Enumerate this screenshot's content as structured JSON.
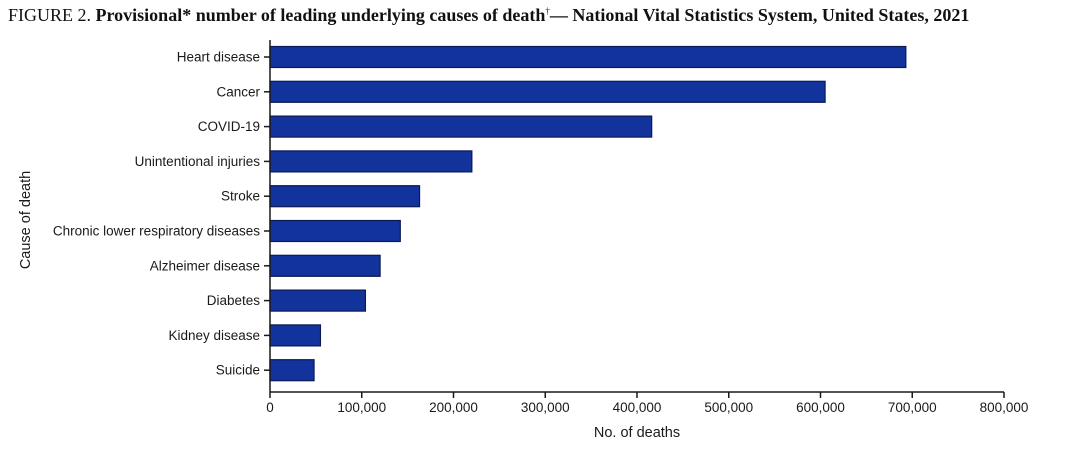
{
  "figure": {
    "label": "FIGURE 2.",
    "title_main": "Provisional* number of leading underlying causes of death",
    "dagger": "†",
    "title_rest": "— National Vital Statistics System, United States, 2021"
  },
  "colors": {
    "bar_fill": "#13339c",
    "bar_stroke": "#0a1a55",
    "axis": "#1a1a1a"
  },
  "chart_data": {
    "type": "bar",
    "orientation": "horizontal",
    "title": "Provisional* number of leading underlying causes of death†— National Vital Statistics System, United States, 2021",
    "categories": [
      "Heart disease",
      "Cancer",
      "COVID-19",
      "Unintentional injuries",
      "Stroke",
      "Chronic lower respiratory diseases",
      "Alzheimer disease",
      "Diabetes",
      "Kidney disease",
      "Suicide"
    ],
    "values": [
      693000,
      605000,
      416000,
      220000,
      163000,
      142000,
      120000,
      104000,
      55000,
      48000
    ],
    "xlabel": "No. of deaths",
    "ylabel": "Cause of death",
    "xlim": [
      0,
      800000
    ],
    "xticks": [
      0,
      100000,
      200000,
      300000,
      400000,
      500000,
      600000,
      700000,
      800000
    ],
    "xtick_labels": [
      "0",
      "100,000",
      "200,000",
      "300,000",
      "400,000",
      "500,000",
      "600,000",
      "700,000",
      "800,000"
    ],
    "grid": false,
    "legend": "none"
  }
}
